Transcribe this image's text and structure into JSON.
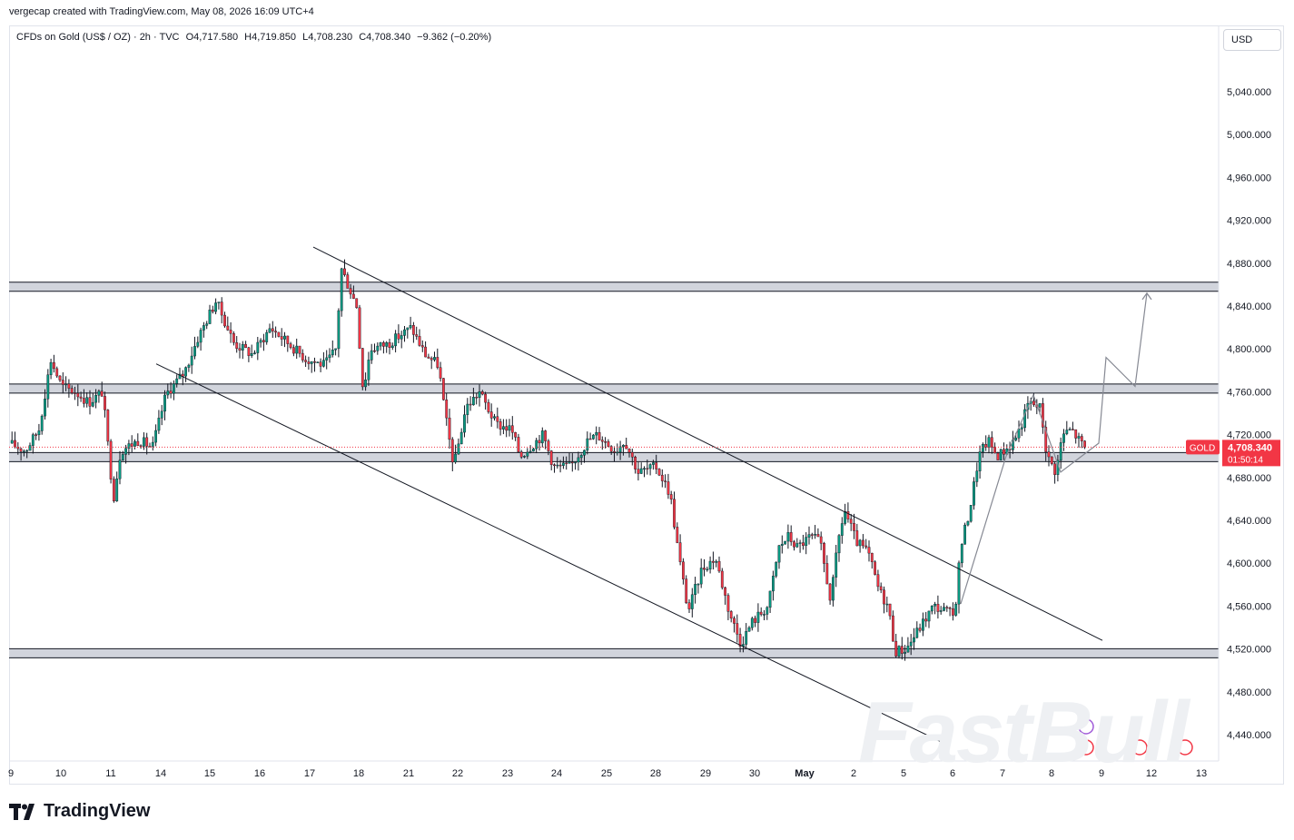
{
  "header": {
    "credit": "vergecap created with TradingView.com, May 08, 2026 16:09 UTC+4"
  },
  "legend": {
    "symbol": "CFDs on Gold (US$ / OZ) · 2h · TVC",
    "open": "O4,717.580",
    "high": "H4,719.850",
    "low": "L4,708.230",
    "close": "C4,708.340",
    "change": "−9.362 (−0.20%)"
  },
  "currency_button": "USD",
  "price_label": {
    "symbol": "GOLD",
    "price": "4,708.340",
    "countdown": "01:50:14",
    "value": 4708.34
  },
  "brand": "TradingView",
  "watermark": "FastBull",
  "colors": {
    "up": "#089981",
    "down": "#f23645",
    "price_tag": "#f23645",
    "zone": "#d1d4dc",
    "grid_text": "#131722"
  },
  "chart_data": {
    "type": "candlestick",
    "y_axis": {
      "ticks": [
        "5,040.000",
        "5,000.000",
        "4,960.000",
        "4,920.000",
        "4,880.000",
        "4,840.000",
        "4,800.000",
        "4,760.000",
        "4,720.000",
        "4,680.000",
        "4,640.000",
        "4,600.000",
        "4,560.000",
        "4,520.000",
        "4,480.000",
        "4,440.000"
      ],
      "ylim": [
        4420,
        5070
      ]
    },
    "x_axis": {
      "ticks": [
        "9",
        "10",
        "11",
        "14",
        "15",
        "16",
        "17",
        "18",
        "21",
        "22",
        "23",
        "24",
        "25",
        "28",
        "29",
        "30",
        "May",
        "2",
        "5",
        "6",
        "7",
        "8",
        "9",
        "12",
        "13"
      ]
    },
    "horizontal_zones": [
      {
        "name": "resistance",
        "price": 4858
      },
      {
        "name": "resistance",
        "price": 4763
      },
      {
        "name": "support",
        "price": 4699
      },
      {
        "name": "support",
        "price": 4516
      }
    ],
    "trendlines": [
      {
        "from": {
          "x": "Apr 17",
          "y": 4895
        },
        "to": {
          "x": "May 8",
          "y": 4528
        }
      },
      {
        "from": {
          "x": "Apr 14",
          "y": 4786
        },
        "to": {
          "x": "May 5",
          "y": 4431
        }
      }
    ],
    "projection_path": [
      {
        "x": "May 8",
        "y": 4712
      },
      {
        "x": "May 9",
        "y": 4792
      },
      {
        "x": "May 12",
        "y": 4765
      },
      {
        "x": "May 12",
        "y": 4852
      }
    ],
    "current_price": 4708.34
  }
}
